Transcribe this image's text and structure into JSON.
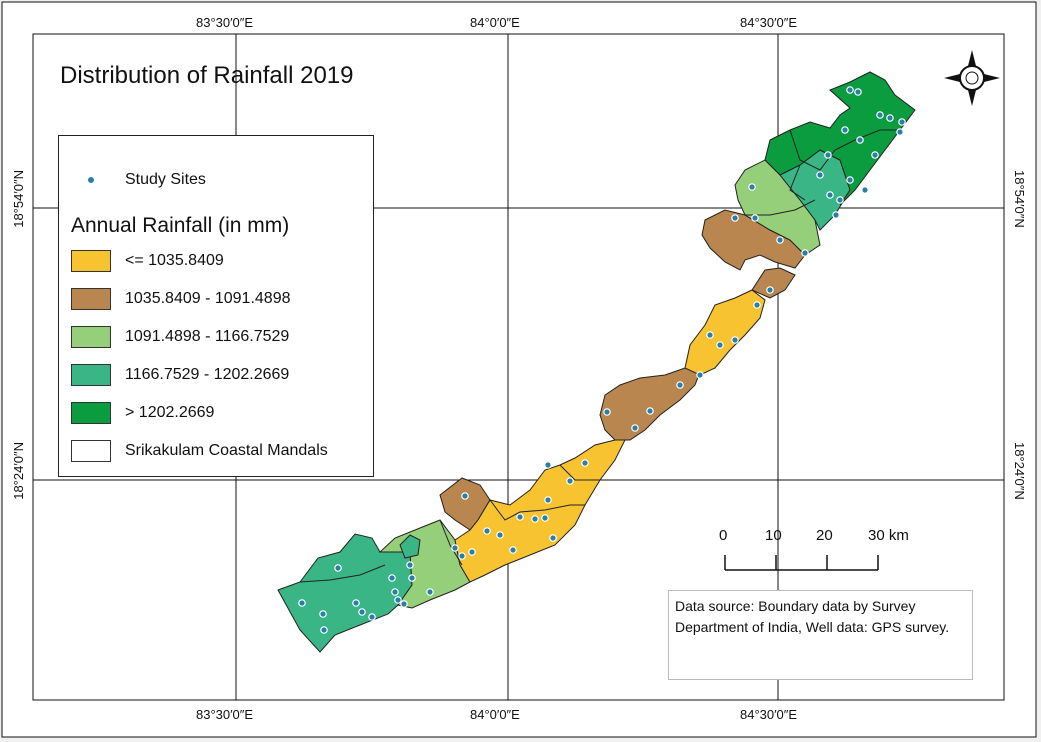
{
  "map": {
    "title": "Distribution of Rainfall 2019",
    "colors": {
      "class1": "#f7c331",
      "class2": "#b8864e",
      "class3": "#96cf7a",
      "class4": "#3ab586",
      "class5": "#0a9c3e",
      "site_dot": "#2a7fa8",
      "boundary": "#222222"
    },
    "graticule": {
      "top": [
        "83°30′0″E",
        "84°0′0″E",
        "84°30′0″E"
      ],
      "bottom": [
        "83°30′0″E",
        "84°0′0″E",
        "84°30′0″E"
      ],
      "left": [
        "18°54′0″N",
        "18°24′0″N"
      ],
      "right": [
        "18°54′0″N",
        "18°24′0″N"
      ]
    },
    "legend": {
      "sites_label": "Study Sites",
      "rainfall_title": "Annual Rainfall (in mm)",
      "classes": [
        "<= 1035.8409",
        "1035.8409 - 1091.4898",
        "1091.4898 - 1166.7529",
        "1166.7529 - 1202.2669",
        "> 1202.2669"
      ],
      "boundary_label": "Srikakulam Coastal Mandals"
    },
    "scale_bar": {
      "ticks": [
        "0",
        "10",
        "20",
        "30 km"
      ]
    },
    "north_arrow": "compass-rose-icon",
    "source_text": "Data source: Boundary data by Survey Department of India, Well data: GPS survey."
  }
}
